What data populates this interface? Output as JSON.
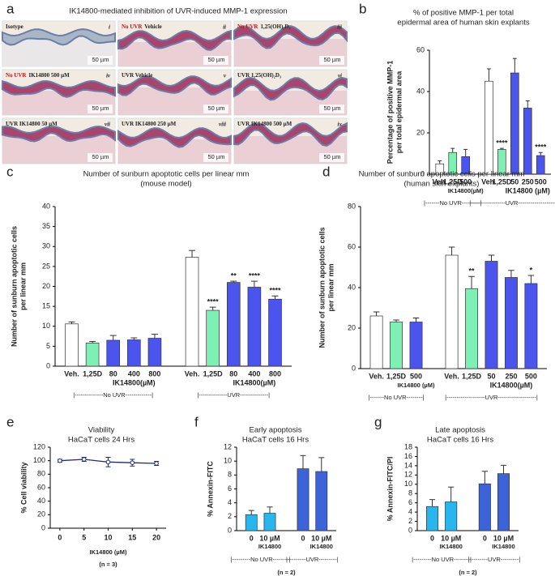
{
  "panel_a": {
    "panel": "a",
    "title": "IK14800-mediated inhibition of UVR-induced MMP-1 expression",
    "scale_bar": "50 µm",
    "tiles": [
      {
        "numeral": "i",
        "label": "Isotype"
      },
      {
        "numeral": "ii",
        "condition": "No UVR",
        "label": "Vehicle"
      },
      {
        "numeral": "iii",
        "condition": "No UVR",
        "label": "1,25(OH)₂D₃"
      },
      {
        "numeral": "iv",
        "condition": "No UVR",
        "label": "IK14800 500 µM"
      },
      {
        "numeral": "v",
        "label": "UVR Vehicle"
      },
      {
        "numeral": "vi",
        "label": "UVR 1,25(OH)₂D₃"
      },
      {
        "numeral": "vii",
        "label": "UVR IK14800 50 µM"
      },
      {
        "numeral": "viii",
        "label": "UVR IK14800 250 µM"
      },
      {
        "numeral": "ix",
        "label": "UVR IK14800 500 µM"
      }
    ]
  },
  "chart_data": [
    {
      "type": "bar",
      "panel": "b",
      "title": "% of positive MMP-1 per total",
      "subtitle": "epidermal area of human skin explants",
      "ylabel": [
        "Percentage of positive MMP-1",
        "per total epidermal area"
      ],
      "ylim": [
        0,
        60
      ],
      "yticks": [
        0,
        20,
        40,
        60
      ],
      "groups": [
        {
          "name": "|-------No UVR---------|",
          "sublabel": "IK14800(µM)",
          "categories": [
            "Veh.",
            "1,25D",
            "500"
          ],
          "values": [
            5,
            10.5,
            8.5
          ],
          "errors": [
            1.5,
            2,
            3.5
          ],
          "colors": [
            "#ffffff",
            "#7ef0b4",
            "#4b55ee"
          ],
          "annotations": [
            null,
            null,
            null
          ]
        },
        {
          "name": "|-----------------UVR--------------------|",
          "sublabel": "IK14800 (µM)",
          "categories": [
            "Veh.",
            "1,25D",
            "50",
            "250",
            "500"
          ],
          "values": [
            45,
            12,
            49,
            32,
            9
          ],
          "errors": [
            6,
            0.5,
            7,
            3.5,
            1.5
          ],
          "colors": [
            "#ffffff",
            "#7ef0b4",
            "#4b55ee",
            "#4b55ee",
            "#4b55ee"
          ],
          "annotations": [
            null,
            "****",
            null,
            null,
            "****"
          ]
        }
      ]
    },
    {
      "type": "bar",
      "panel": "c",
      "title": "Number of sunburn apoptotic cells per linear mm",
      "subtitle": "(mouse model)",
      "ylabel": [
        "Number of sunburn apoptotic cells",
        "per linear mm"
      ],
      "ylim": [
        0,
        40
      ],
      "yticks": [
        0,
        5,
        10,
        15,
        20,
        25,
        30,
        35,
        40
      ],
      "groups": [
        {
          "name": "|--------------No UVR-------------|",
          "sublabel": "IK14800(µM)",
          "categories": [
            "Veh.",
            "1,25D",
            "80",
            "400",
            "800"
          ],
          "values": [
            10.6,
            5.8,
            6.5,
            6.6,
            7
          ],
          "errors": [
            0.5,
            0.4,
            1.2,
            0.5,
            1
          ],
          "colors": [
            "#ffffff",
            "#7ef0b4",
            "#4b55ee",
            "#4b55ee",
            "#4b55ee"
          ],
          "annotations": [
            null,
            null,
            null,
            null,
            null
          ]
        },
        {
          "name": "|--------------UVR--------------|",
          "sublabel": "IK14800(µM)",
          "categories": [
            "Veh.",
            "1,25D",
            "80",
            "400",
            "800"
          ],
          "values": [
            27.3,
            14,
            21,
            19.8,
            16.8
          ],
          "errors": [
            1.7,
            0.8,
            0.3,
            1.5,
            0.8
          ],
          "colors": [
            "#ffffff",
            "#7ef0b4",
            "#4b55ee",
            "#4b55ee",
            "#4b55ee"
          ],
          "annotations": [
            null,
            "****",
            "**",
            "****",
            "****"
          ]
        }
      ]
    },
    {
      "type": "bar",
      "panel": "d",
      "title": "Number of sunburn apoptotic cells per linear mm",
      "subtitle": "(human skin explants)",
      "ylabel": [
        "Number of sunburn apoptotic cells",
        "per linear mm"
      ],
      "ylim": [
        0,
        80
      ],
      "yticks": [
        0,
        20,
        40,
        60,
        80
      ],
      "groups": [
        {
          "name": "|-------No UVR--------|",
          "sublabel": "IK14800 (µM)",
          "categories": [
            "Veh.",
            "1,25D",
            "500"
          ],
          "values": [
            26,
            23,
            23
          ],
          "errors": [
            2,
            1,
            2
          ],
          "colors": [
            "#ffffff",
            "#7ef0b4",
            "#4b55ee"
          ],
          "annotations": [
            null,
            null,
            null
          ]
        },
        {
          "name": "|-------------------UVR-------------------|",
          "sublabel": "IK14800(µM)",
          "categories": [
            "Veh.",
            "1,25D",
            "50",
            "250",
            "500"
          ],
          "values": [
            56,
            39.5,
            53,
            45,
            42
          ],
          "errors": [
            4,
            6,
            3,
            3.5,
            4
          ],
          "colors": [
            "#ffffff",
            "#7ef0b4",
            "#4b55ee",
            "#4b55ee",
            "#4b55ee"
          ],
          "annotations": [
            null,
            "**",
            null,
            null,
            "*"
          ]
        }
      ]
    },
    {
      "type": "line",
      "panel": "e",
      "title": "Viability",
      "subtitle": "HaCaT cells 24 Hrs",
      "ylabel": [
        "% Cell viability"
      ],
      "xlabel": "IK14800 (µM)",
      "note": "(n = 3)",
      "x": [
        0,
        5,
        10,
        15,
        20
      ],
      "values": [
        100,
        102,
        98,
        97,
        96
      ],
      "errors": [
        2,
        3,
        7,
        5,
        3
      ],
      "color": "#1f2a7a",
      "xlim": [
        -2,
        22
      ],
      "xticks": [
        0,
        5,
        10,
        15,
        20
      ],
      "ylim": [
        0,
        120
      ],
      "yticks": [
        0,
        20,
        40,
        60,
        80,
        100,
        120
      ]
    },
    {
      "type": "bar",
      "panel": "f",
      "title": "Early apoptosis",
      "subtitle": "HaCaT cells 16 Hrs",
      "ylabel": [
        "% Annexin-FITC"
      ],
      "note": "(n = 2)",
      "ylim": [
        0,
        12
      ],
      "yticks": [
        0,
        2,
        4,
        6,
        8,
        10,
        12
      ],
      "groups": [
        {
          "name": "|---------No UVR--------|",
          "categories": [
            "0",
            "10 µM"
          ],
          "categories2": [
            null,
            "IK14800"
          ],
          "values": [
            2.3,
            2.5
          ],
          "errors": [
            0.6,
            0.9
          ],
          "colors": [
            "#29b6ee",
            "#29b6ee"
          ],
          "annotations": [
            null,
            null
          ]
        },
        {
          "name": "|---------UVR---------|",
          "categories": [
            "0",
            "10 µM"
          ],
          "categories2": [
            null,
            "IK14800"
          ],
          "values": [
            8.9,
            8.5
          ],
          "errors": [
            1.9,
            2
          ],
          "colors": [
            "#3d63d8",
            "#3d63d8"
          ],
          "annotations": [
            null,
            null
          ]
        }
      ]
    },
    {
      "type": "bar",
      "panel": "g",
      "title": "Late apoptosis",
      "subtitle": "HaCaT cells 16 Hrs",
      "ylabel": [
        "% Annexin-FITC/PI"
      ],
      "note": "(n = 2)",
      "ylim": [
        0,
        18
      ],
      "yticks": [
        0,
        2,
        4,
        6,
        8,
        10,
        12,
        14,
        16,
        18
      ],
      "groups": [
        {
          "name": "|---------No UVR--------|",
          "categories": [
            "0",
            "10 µM"
          ],
          "categories2": [
            null,
            "IK14800"
          ],
          "values": [
            5.2,
            6.2
          ],
          "errors": [
            1.5,
            3.2
          ],
          "colors": [
            "#29b6ee",
            "#29b6ee"
          ],
          "annotations": [
            null,
            null
          ]
        },
        {
          "name": "|---------UVR---------|",
          "categories": [
            "0",
            "10 µM"
          ],
          "categories2": [
            null,
            "IK14800"
          ],
          "values": [
            10.1,
            12.3
          ],
          "errors": [
            2.7,
            1.8
          ],
          "colors": [
            "#3d63d8",
            "#3d63d8"
          ],
          "annotations": [
            null,
            null
          ]
        }
      ]
    }
  ]
}
